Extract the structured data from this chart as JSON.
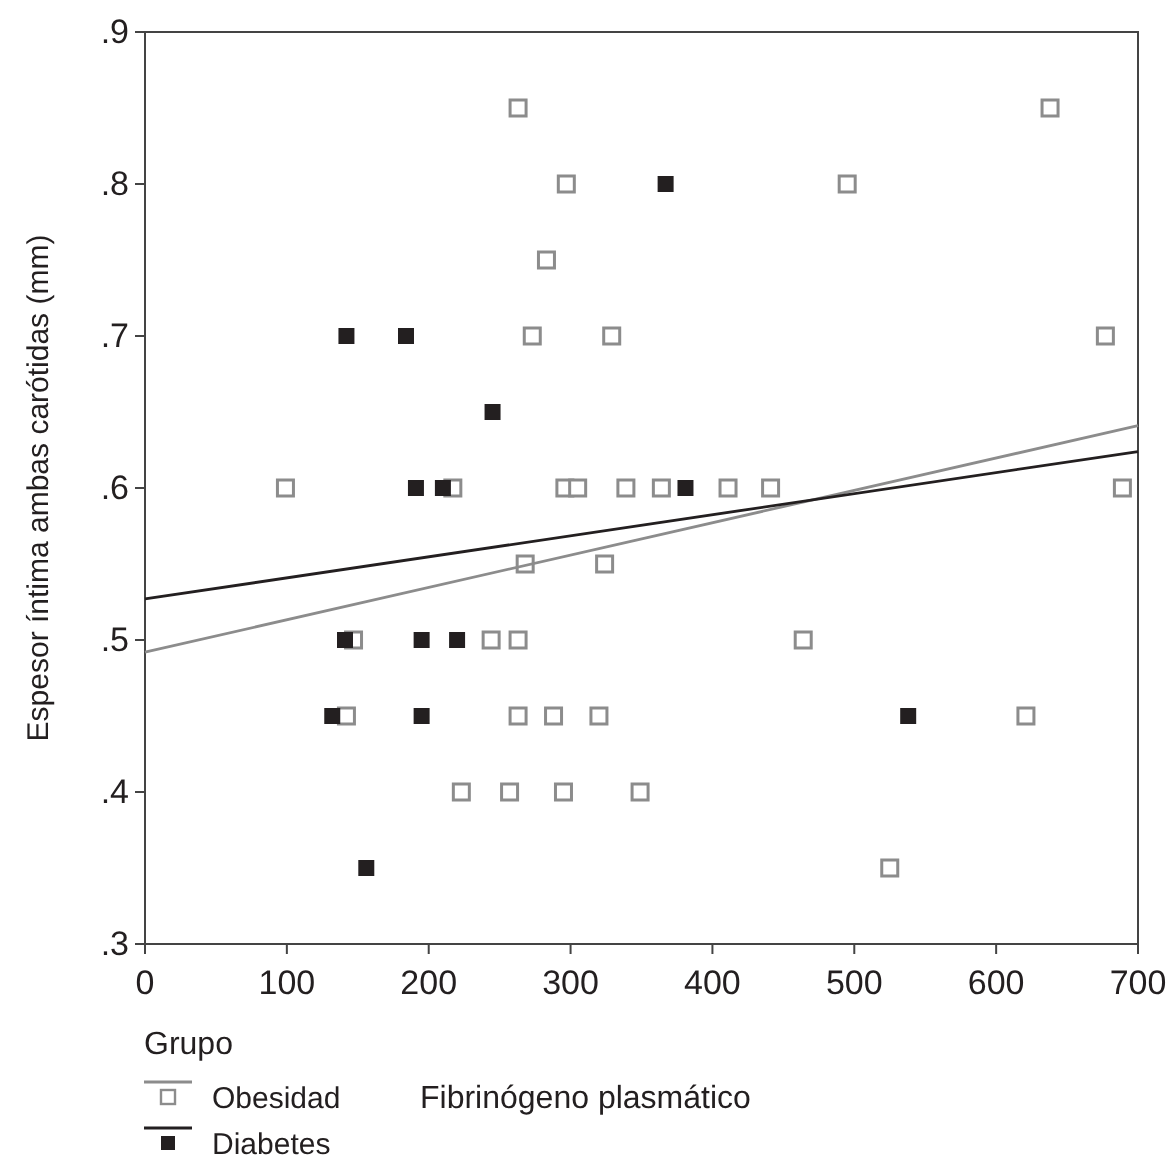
{
  "chart_data": {
    "type": "scatter",
    "xlabel": "Fibrinógeno plasmático",
    "ylabel": "Espesor íntima ambas carótidas (mm)",
    "legend_title": "Grupo",
    "legend": "bottom left",
    "marker": "square",
    "grid": false,
    "xlim": [
      0,
      700
    ],
    "xticks": [
      0,
      100,
      200,
      300,
      400,
      500,
      600,
      700
    ],
    "ylim": [
      0.3,
      0.9
    ],
    "yticks": [
      {
        "value": 0.3,
        "label": ".3"
      },
      {
        "value": 0.4,
        "label": ".4"
      },
      {
        "value": 0.5,
        "label": ".5"
      },
      {
        "value": 0.6,
        "label": ".6"
      },
      {
        "value": 0.7,
        "label": ".7"
      },
      {
        "value": 0.8,
        "label": ".8"
      },
      {
        "value": 0.9,
        "label": ".9"
      }
    ],
    "series": [
      {
        "name": "Obesidad",
        "color": "#8c8c8c",
        "x": [
          263,
          297,
          283,
          273,
          329,
          99,
          217,
          296,
          305,
          339,
          638,
          495,
          677,
          364,
          411,
          441,
          689,
          324,
          464,
          320,
          349,
          525,
          621,
          147,
          244,
          263,
          268,
          142,
          263,
          288,
          223,
          257,
          295
        ],
        "values": [
          0.85,
          0.8,
          0.75,
          0.7,
          0.7,
          0.6,
          0.6,
          0.6,
          0.6,
          0.6,
          0.85,
          0.8,
          0.7,
          0.6,
          0.6,
          0.6,
          0.6,
          0.55,
          0.5,
          0.45,
          0.4,
          0.35,
          0.45,
          0.5,
          0.5,
          0.5,
          0.55,
          0.45,
          0.45,
          0.45,
          0.4,
          0.4,
          0.4
        ]
      },
      {
        "name": "Diabetes",
        "color": "#231f20",
        "x": [
          142,
          184,
          245,
          191,
          210,
          367,
          381,
          141,
          195,
          220,
          132,
          195,
          156,
          538
        ],
        "values": [
          0.7,
          0.7,
          0.65,
          0.6,
          0.6,
          0.8,
          0.6,
          0.5,
          0.5,
          0.5,
          0.45,
          0.45,
          0.35,
          0.45
        ]
      },
      {
        "type": "line",
        "marker": "none",
        "color": "#8c8c8c",
        "x": [
          0,
          700
        ],
        "values": [
          0.492,
          0.641
        ]
      },
      {
        "type": "line",
        "marker": "none",
        "color": "#231f20",
        "x": [
          0,
          700
        ],
        "values": [
          0.527,
          0.624
        ]
      }
    ]
  }
}
